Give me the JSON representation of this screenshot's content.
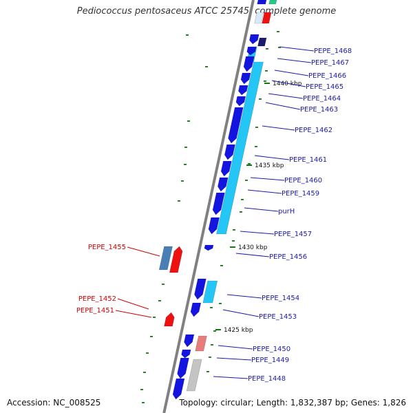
{
  "title": "Pediococcus pentosaceus ATCC 25745, complete genome",
  "footer": {
    "accession": "Accession: NC_008525",
    "topology": "Topology: circular; Length: 1,832,387 bp; Genes: 1,826"
  },
  "colors": {
    "backbone": "#808080",
    "gene_blue": "#1414e0",
    "gene_cyan": "#23c6f5",
    "gene_navy": "#1a1a6e",
    "gene_steel": "#4a7fb5",
    "gene_red": "#ee1111",
    "gene_pink": "#e87b7b",
    "gene_gray": "#c4c4c4",
    "gene_green": "#22cc88",
    "tick": "#117711",
    "label_blue": "#1a1aa6",
    "label_red": "#cc0000"
  },
  "scale_labels": [
    "1440 kbp",
    "1435 kbp",
    "1430 kbp",
    "1425 kbp"
  ],
  "labels_right": [
    "PEPE_1468",
    "PEPE_1467",
    "PEPE_1466",
    "PEPE_1465",
    "PEPE_1464",
    "PEPE_1463",
    "PEPE_1462",
    "PEPE_1461",
    "PEPE_1460",
    "PEPE_1459",
    "purH",
    "PEPE_1457",
    "PEPE_1456",
    "PEPE_1454",
    "PEPE_1453",
    "PEPE_1450",
    "PEPE_1449",
    "PEPE_1448"
  ],
  "labels_left": [
    "PEPE_1455",
    "PEPE_1452",
    "PEPE_1451"
  ]
}
